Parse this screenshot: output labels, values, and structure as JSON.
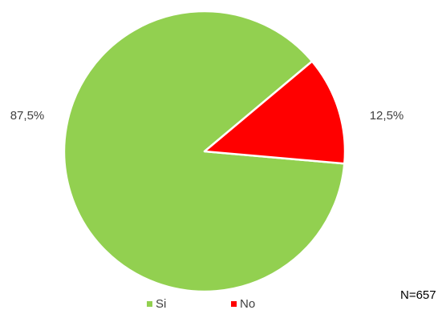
{
  "chart_data": {
    "type": "pie",
    "categories": [
      "Si",
      "No"
    ],
    "values": [
      87.5,
      12.5
    ],
    "labels": [
      "87,5%",
      "12,5%"
    ],
    "colors": [
      "#92D050",
      "#FF0000"
    ],
    "legend": {
      "position": "bottom",
      "entries": [
        "Si",
        "No"
      ]
    },
    "annotation": "N=657"
  }
}
